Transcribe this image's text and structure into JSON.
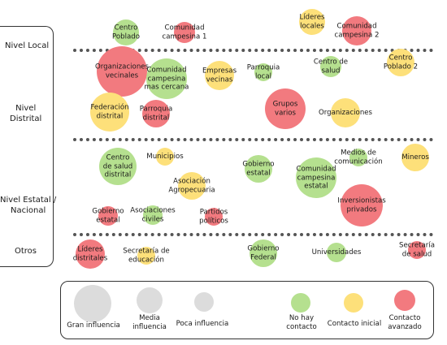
{
  "levels": {
    "local": "Nivel Local",
    "distrital": "Nivel\nDistrital",
    "estatal": "Nivel Estatal /\nNacional",
    "otros": "Otros"
  },
  "colors": {
    "no_contact": "#b5e08f",
    "initial": "#fde07a",
    "advanced": "#f27a7f",
    "size_ref": "#dcdcdc"
  },
  "actors": [
    {
      "label": "Centro\nPoblado",
      "status": "no_contact",
      "influence": "medium"
    },
    {
      "label": "Comunidad\ncampesina 1",
      "status": "advanced",
      "influence": "small"
    },
    {
      "label": "Líderes\nlocales",
      "status": "initial",
      "influence": "medium"
    },
    {
      "label": "Comunidad\ncampesina 2",
      "status": "advanced",
      "influence": "medium"
    },
    {
      "label": "Organizaciones\nvecinales",
      "status": "advanced",
      "influence": "large"
    },
    {
      "label": "Comunidad\ncampesina\nmas cercana",
      "status": "no_contact",
      "influence": "large"
    },
    {
      "label": "Empresas\nvecinas",
      "status": "initial",
      "influence": "medium"
    },
    {
      "label": "Parroquia\nlocal",
      "status": "no_contact",
      "influence": "small"
    },
    {
      "label": "Centro de\nsalud",
      "status": "no_contact",
      "influence": "small"
    },
    {
      "label": "Centro\nPoblado 2",
      "status": "initial",
      "influence": "medium"
    },
    {
      "label": "Federación\ndistrital",
      "status": "initial",
      "influence": "large"
    },
    {
      "label": "Parroquia\ndistrital",
      "status": "advanced",
      "influence": "medium"
    },
    {
      "label": "Grupos\nvarios",
      "status": "advanced",
      "influence": "large"
    },
    {
      "label": "Organizaciones",
      "status": "initial",
      "influence": "medium"
    },
    {
      "label": "Centro\nde salud\ndistrital",
      "status": "no_contact",
      "influence": "large"
    },
    {
      "label": "Municipios",
      "status": "initial",
      "influence": "small"
    },
    {
      "label": "Gobierno\nestatal",
      "status": "no_contact",
      "influence": "medium"
    },
    {
      "label": "Medios de\ncomunicación",
      "status": "no_contact",
      "influence": "small"
    },
    {
      "label": "Mineros",
      "status": "initial",
      "influence": "medium"
    },
    {
      "label": "Asociación\nAgropecuaria",
      "status": "initial",
      "influence": "medium"
    },
    {
      "label": "Comunidad\ncampesina\nestatal",
      "status": "no_contact",
      "influence": "large"
    },
    {
      "label": "Inversionistas\nprivados",
      "status": "advanced",
      "influence": "large"
    },
    {
      "label": "Gobierno\nestatal",
      "status": "advanced",
      "influence": "small"
    },
    {
      "label": "Asociaciones\nciviles",
      "status": "no_contact",
      "influence": "small"
    },
    {
      "label": "Partidos\npolíticos",
      "status": "advanced",
      "influence": "small"
    },
    {
      "label": "Líderes\ndistritales",
      "status": "advanced",
      "influence": "medium"
    },
    {
      "label": "Secretaría de\neducación",
      "status": "initial",
      "influence": "small"
    },
    {
      "label": "Gobierno\nFederal",
      "status": "no_contact",
      "influence": "medium"
    },
    {
      "label": "Universidades",
      "status": "no_contact",
      "influence": "small"
    },
    {
      "label": "Secretaría\nde salud",
      "status": "advanced",
      "influence": "small"
    }
  ],
  "legend": {
    "large": "Gran influencia",
    "medium": "Media\ninfluencia",
    "small": "Poca influencia",
    "no_contact": "No hay\ncontacto",
    "initial": "Contacto inicial",
    "advanced": "Contacto\navanzado"
  }
}
